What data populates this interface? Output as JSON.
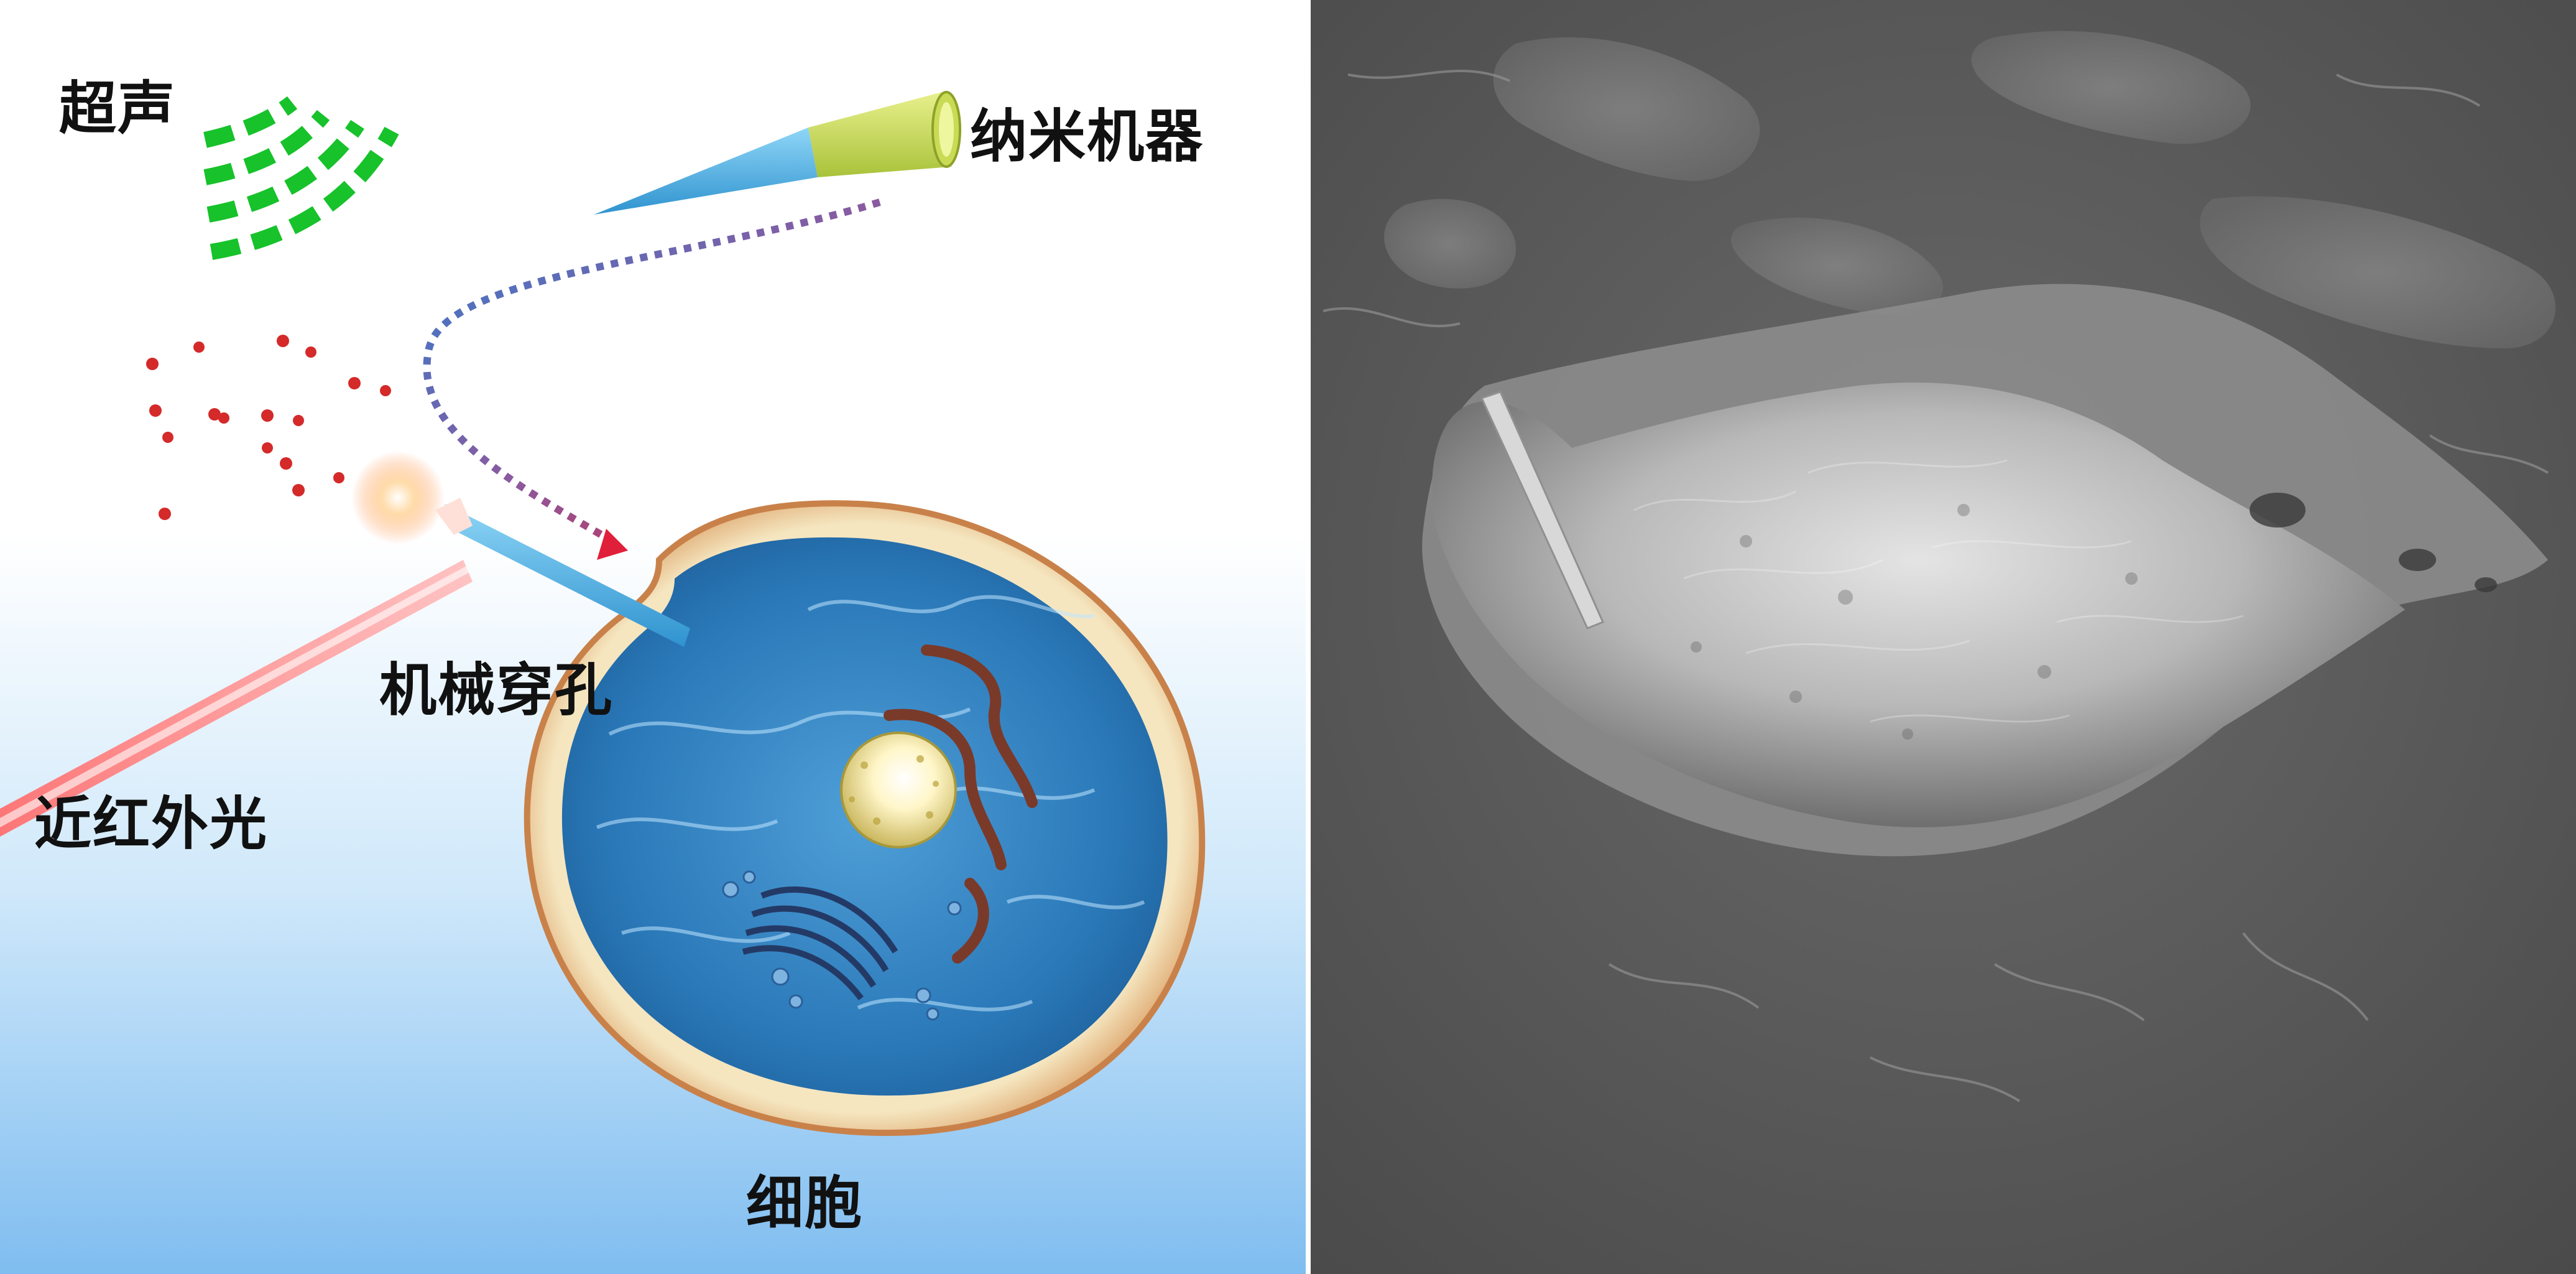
{
  "left_panel": {
    "labels": {
      "ultrasound": "超声",
      "nanomachine": "纳米机器",
      "mechanical_perforation": "机械穿孔",
      "near_infrared": "近红外光",
      "cell": "细胞"
    },
    "colors": {
      "background_top": "#ffffff",
      "background_bottom": "#7fbdf0",
      "ultrasound_waves": "#17c22a",
      "nanomachine_body": "#4eb4e6",
      "nanomachine_tip": "#cfe36a",
      "path_start": "#2f7fd0",
      "path_end": "#e0203a",
      "particles": "#d42a2a",
      "laser": "#ff8a8a",
      "cell_membrane": "#e3b47a",
      "cytoplasm": "#2f7fc2"
    }
  },
  "right_panel": {
    "colors": {
      "background": "#5a5a5a",
      "cell": "#bdbdbd"
    }
  }
}
